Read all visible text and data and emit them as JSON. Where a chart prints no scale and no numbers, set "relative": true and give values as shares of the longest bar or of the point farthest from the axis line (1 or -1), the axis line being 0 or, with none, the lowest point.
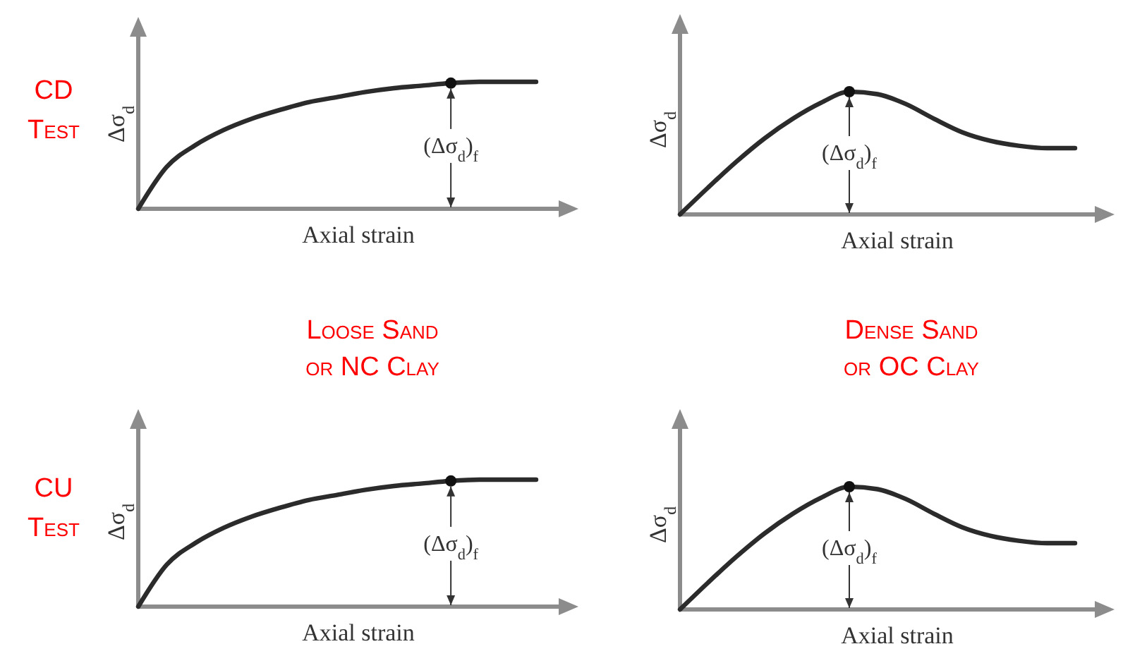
{
  "chart_data": [
    {
      "type": "line",
      "relative": true,
      "xlabel": "Axial strain",
      "ylabel": "Δσ$_{d}$",
      "categories": [
        null,
        null,
        null,
        null,
        null,
        null,
        null,
        null,
        null,
        null,
        null,
        null,
        null,
        null,
        null
      ],
      "series": [
        {
          "color": "#2b2b2b",
          "values": [
            0,
            0.33,
            0.5,
            0.62,
            0.71,
            0.78,
            0.84,
            0.88,
            0.92,
            0.95,
            0.97,
            0.99,
            1,
            1,
            1
          ]
        }
      ],
      "annotations": [
        "CD\nTest",
        {
          "text": "(Δσ$_{d}$)$_{f}$",
          "y": 0.99
        }
      ]
    },
    {
      "type": "line",
      "relative": true,
      "xlabel": "Axial strain",
      "ylabel": "Δσ$_{d}$",
      "categories": [
        null,
        null,
        null,
        null,
        null,
        null,
        null,
        null,
        null,
        null,
        null,
        null,
        null,
        null,
        null
      ],
      "series": [
        {
          "color": "#2b2b2b",
          "values": [
            0,
            0.22,
            0.43,
            0.62,
            0.78,
            0.91,
            1,
            0.98,
            0.9,
            0.78,
            0.67,
            0.6,
            0.56,
            0.54,
            0.54
          ]
        }
      ],
      "annotations": [
        {
          "text": "(Δσ$_{d}$)$_{f}$",
          "y": 1
        }
      ]
    },
    {
      "type": "line",
      "relative": true,
      "title": "Loose Sand\nor NC Clay",
      "xlabel": "Axial strain",
      "ylabel": "Δσ$_{d}$",
      "categories": [
        null,
        null,
        null,
        null,
        null,
        null,
        null,
        null,
        null,
        null,
        null,
        null,
        null,
        null,
        null
      ],
      "series": [
        {
          "color": "#2b2b2b",
          "values": [
            0,
            0.33,
            0.5,
            0.62,
            0.71,
            0.78,
            0.84,
            0.88,
            0.92,
            0.95,
            0.97,
            0.99,
            1,
            1,
            1
          ]
        }
      ],
      "annotations": [
        "CU\nTest",
        {
          "text": "(Δσ$_{d}$)$_{f}$",
          "y": 0.99
        }
      ]
    },
    {
      "type": "line",
      "relative": true,
      "title": "Dense Sand\nor OC Clay",
      "xlabel": "Axial strain",
      "ylabel": "Δσ$_{d}$",
      "categories": [
        null,
        null,
        null,
        null,
        null,
        null,
        null,
        null,
        null,
        null,
        null,
        null,
        null,
        null,
        null
      ],
      "series": [
        {
          "color": "#2b2b2b",
          "values": [
            0,
            0.22,
            0.43,
            0.62,
            0.78,
            0.91,
            1,
            0.98,
            0.9,
            0.78,
            0.67,
            0.6,
            0.56,
            0.54,
            0.54
          ]
        }
      ],
      "annotations": [
        {
          "text": "(Δσ$_{d}$)$_{f}$",
          "y": 1
        }
      ]
    }
  ]
}
